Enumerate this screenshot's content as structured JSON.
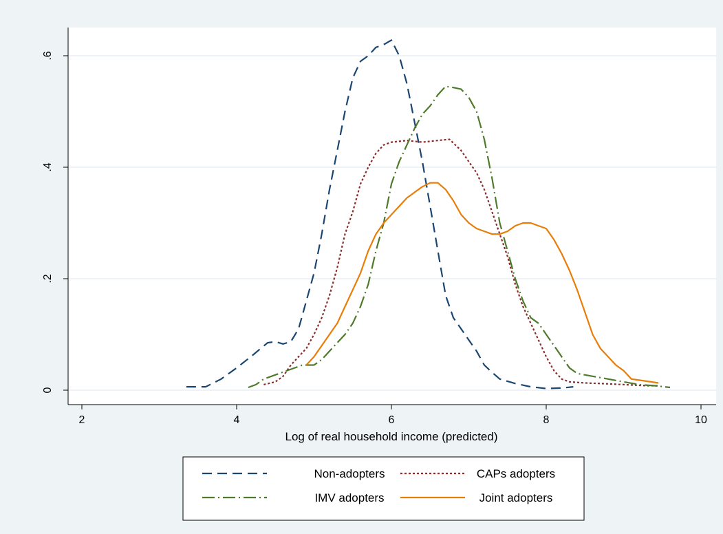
{
  "chart_data": {
    "type": "line",
    "title": "",
    "xlabel": "Log of real household income (predicted)",
    "ylabel": "",
    "xlim": [
      2,
      10
    ],
    "ylim": [
      0,
      0.6
    ],
    "xticks": [
      2,
      4,
      6,
      8,
      10
    ],
    "xtick_labels": [
      "2",
      "4",
      "6",
      "8",
      "10"
    ],
    "yticks": [
      0,
      0.2,
      0.4,
      0.6
    ],
    "ytick_labels": [
      "0",
      ".2",
      ".4",
      ".6"
    ],
    "grid": "horizontal",
    "legend": {
      "position": "bottom",
      "columns": 2
    },
    "colors": {
      "background": "#eef3f6",
      "plot_background": "#ffffff",
      "grid": "#e6eef2",
      "axis": "#000000",
      "legend_border": "#000000"
    },
    "series": [
      {
        "name": "Non-adopters",
        "color": "#1a4670",
        "dash": "14 8",
        "points": [
          [
            3.35,
            0.006
          ],
          [
            3.6,
            0.006
          ],
          [
            3.8,
            0.02
          ],
          [
            4.0,
            0.04
          ],
          [
            4.2,
            0.062
          ],
          [
            4.4,
            0.085
          ],
          [
            4.5,
            0.087
          ],
          [
            4.6,
            0.083
          ],
          [
            4.7,
            0.087
          ],
          [
            4.8,
            0.11
          ],
          [
            4.9,
            0.16
          ],
          [
            5.0,
            0.21
          ],
          [
            5.1,
            0.28
          ],
          [
            5.2,
            0.36
          ],
          [
            5.3,
            0.43
          ],
          [
            5.4,
            0.5
          ],
          [
            5.5,
            0.56
          ],
          [
            5.6,
            0.59
          ],
          [
            5.7,
            0.6
          ],
          [
            5.8,
            0.615
          ],
          [
            5.9,
            0.62
          ],
          [
            6.0,
            0.628
          ],
          [
            6.1,
            0.6
          ],
          [
            6.2,
            0.55
          ],
          [
            6.3,
            0.48
          ],
          [
            6.4,
            0.41
          ],
          [
            6.5,
            0.33
          ],
          [
            6.6,
            0.25
          ],
          [
            6.7,
            0.17
          ],
          [
            6.8,
            0.13
          ],
          [
            6.9,
            0.11
          ],
          [
            7.0,
            0.09
          ],
          [
            7.1,
            0.07
          ],
          [
            7.2,
            0.045
          ],
          [
            7.3,
            0.032
          ],
          [
            7.4,
            0.02
          ],
          [
            7.6,
            0.012
          ],
          [
            7.8,
            0.006
          ],
          [
            8.0,
            0.003
          ],
          [
            8.2,
            0.004
          ],
          [
            8.35,
            0.006
          ]
        ]
      },
      {
        "name": "CAPs adopters",
        "color": "#8b2b2b",
        "dash": "3 3",
        "points": [
          [
            4.35,
            0.01
          ],
          [
            4.5,
            0.015
          ],
          [
            4.6,
            0.025
          ],
          [
            4.7,
            0.045
          ],
          [
            4.8,
            0.06
          ],
          [
            4.9,
            0.075
          ],
          [
            5.0,
            0.1
          ],
          [
            5.1,
            0.13
          ],
          [
            5.2,
            0.17
          ],
          [
            5.3,
            0.22
          ],
          [
            5.4,
            0.28
          ],
          [
            5.5,
            0.32
          ],
          [
            5.6,
            0.37
          ],
          [
            5.7,
            0.4
          ],
          [
            5.8,
            0.425
          ],
          [
            5.9,
            0.44
          ],
          [
            6.0,
            0.445
          ],
          [
            6.2,
            0.448
          ],
          [
            6.4,
            0.445
          ],
          [
            6.6,
            0.448
          ],
          [
            6.75,
            0.45
          ],
          [
            6.9,
            0.43
          ],
          [
            7.0,
            0.41
          ],
          [
            7.1,
            0.39
          ],
          [
            7.2,
            0.36
          ],
          [
            7.3,
            0.32
          ],
          [
            7.4,
            0.28
          ],
          [
            7.5,
            0.24
          ],
          [
            7.6,
            0.19
          ],
          [
            7.7,
            0.15
          ],
          [
            7.8,
            0.12
          ],
          [
            7.9,
            0.09
          ],
          [
            8.0,
            0.06
          ],
          [
            8.1,
            0.035
          ],
          [
            8.2,
            0.02
          ],
          [
            8.3,
            0.015
          ],
          [
            8.5,
            0.013
          ],
          [
            8.7,
            0.012
          ],
          [
            9.0,
            0.01
          ],
          [
            9.3,
            0.008
          ],
          [
            9.45,
            0.008
          ]
        ]
      },
      {
        "name": "IMV adopters",
        "color": "#4e7a2c",
        "dash": "18 5 2 5",
        "points": [
          [
            4.15,
            0.005
          ],
          [
            4.25,
            0.01
          ],
          [
            4.35,
            0.02
          ],
          [
            4.45,
            0.025
          ],
          [
            4.55,
            0.03
          ],
          [
            4.65,
            0.035
          ],
          [
            4.75,
            0.04
          ],
          [
            4.85,
            0.045
          ],
          [
            5.0,
            0.045
          ],
          [
            5.1,
            0.055
          ],
          [
            5.2,
            0.07
          ],
          [
            5.3,
            0.085
          ],
          [
            5.4,
            0.1
          ],
          [
            5.5,
            0.12
          ],
          [
            5.6,
            0.15
          ],
          [
            5.7,
            0.19
          ],
          [
            5.8,
            0.25
          ],
          [
            5.9,
            0.3
          ],
          [
            6.0,
            0.37
          ],
          [
            6.1,
            0.41
          ],
          [
            6.2,
            0.44
          ],
          [
            6.3,
            0.47
          ],
          [
            6.4,
            0.495
          ],
          [
            6.5,
            0.51
          ],
          [
            6.6,
            0.53
          ],
          [
            6.7,
            0.545
          ],
          [
            6.8,
            0.543
          ],
          [
            6.9,
            0.54
          ],
          [
            7.0,
            0.525
          ],
          [
            7.1,
            0.5
          ],
          [
            7.2,
            0.45
          ],
          [
            7.3,
            0.38
          ],
          [
            7.4,
            0.3
          ],
          [
            7.5,
            0.25
          ],
          [
            7.6,
            0.2
          ],
          [
            7.7,
            0.16
          ],
          [
            7.8,
            0.13
          ],
          [
            7.9,
            0.12
          ],
          [
            8.0,
            0.1
          ],
          [
            8.1,
            0.08
          ],
          [
            8.2,
            0.06
          ],
          [
            8.3,
            0.04
          ],
          [
            8.4,
            0.03
          ],
          [
            8.6,
            0.025
          ],
          [
            8.8,
            0.02
          ],
          [
            9.0,
            0.015
          ],
          [
            9.2,
            0.01
          ],
          [
            9.4,
            0.008
          ],
          [
            9.6,
            0.005
          ]
        ]
      },
      {
        "name": "Joint adopters",
        "color": "#e87d07",
        "dash": "",
        "points": [
          [
            4.9,
            0.045
          ],
          [
            5.0,
            0.06
          ],
          [
            5.1,
            0.08
          ],
          [
            5.2,
            0.1
          ],
          [
            5.3,
            0.12
          ],
          [
            5.4,
            0.15
          ],
          [
            5.5,
            0.18
          ],
          [
            5.6,
            0.21
          ],
          [
            5.7,
            0.25
          ],
          [
            5.8,
            0.28
          ],
          [
            5.9,
            0.3
          ],
          [
            6.0,
            0.315
          ],
          [
            6.1,
            0.33
          ],
          [
            6.2,
            0.345
          ],
          [
            6.3,
            0.355
          ],
          [
            6.4,
            0.365
          ],
          [
            6.5,
            0.372
          ],
          [
            6.6,
            0.372
          ],
          [
            6.7,
            0.36
          ],
          [
            6.8,
            0.34
          ],
          [
            6.9,
            0.315
          ],
          [
            7.0,
            0.3
          ],
          [
            7.1,
            0.29
          ],
          [
            7.2,
            0.285
          ],
          [
            7.3,
            0.28
          ],
          [
            7.4,
            0.28
          ],
          [
            7.5,
            0.285
          ],
          [
            7.6,
            0.295
          ],
          [
            7.7,
            0.3
          ],
          [
            7.8,
            0.3
          ],
          [
            7.9,
            0.295
          ],
          [
            8.0,
            0.29
          ],
          [
            8.1,
            0.27
          ],
          [
            8.2,
            0.245
          ],
          [
            8.3,
            0.215
          ],
          [
            8.4,
            0.18
          ],
          [
            8.5,
            0.14
          ],
          [
            8.6,
            0.1
          ],
          [
            8.7,
            0.075
          ],
          [
            8.8,
            0.06
          ],
          [
            8.9,
            0.045
          ],
          [
            9.0,
            0.035
          ],
          [
            9.1,
            0.02
          ],
          [
            9.2,
            0.018
          ],
          [
            9.3,
            0.016
          ],
          [
            9.45,
            0.013
          ]
        ]
      }
    ]
  }
}
